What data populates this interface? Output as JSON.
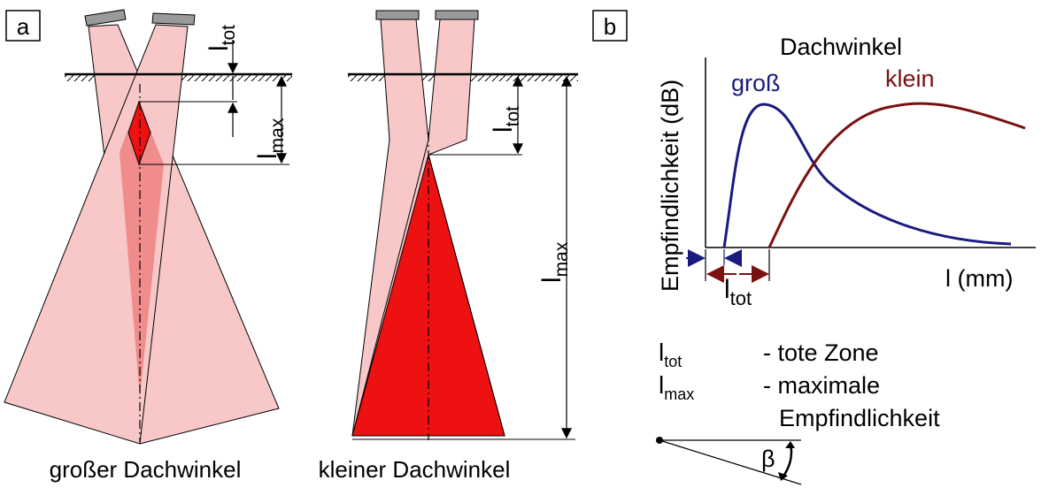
{
  "panel_a": {
    "label": "a",
    "left_caption": "großer Dachwinkel",
    "right_caption": "kleiner Dachwinkel",
    "l_letter": "l",
    "tot_sub": "tot",
    "max_sub": "max"
  },
  "panel_b": {
    "label": "b",
    "legend_title": "Dachwinkel",
    "curve_gross_label": "groß",
    "curve_klein_label": "klein",
    "y_axis_label": "Empfindlichkeit (dB)",
    "x_axis_label": "l (mm)",
    "ltot_letter": "l",
    "ltot_sub": "tot"
  },
  "legend": {
    "l_letter": "l",
    "tot_sub": "tot",
    "max_sub": "max",
    "tot_desc": "- tote Zone",
    "max_desc_line1": "- maximale",
    "max_desc_line2": "Empfindlichkeit"
  },
  "angle_symbol": "β",
  "colors": {
    "beam_fill": "#f8c8c8",
    "beam_overlap": "#f08c8c",
    "sensitive_zone": "#ee1111",
    "curve_gross": "#1a1a80",
    "curve_klein": "#7a1010",
    "sensor_head": "#9a9a9a"
  }
}
